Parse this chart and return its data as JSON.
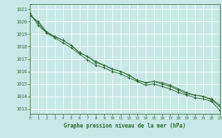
{
  "title": "Graphe pression niveau de la mer (hPa)",
  "bg_color": "#c8e8e8",
  "grid_color": "#b0d0d0",
  "line_color": "#2d6a2d",
  "x_min": 0,
  "x_max": 23,
  "y_min": 1012.6,
  "y_max": 1021.4,
  "y_ticks": [
    1013,
    1014,
    1015,
    1016,
    1017,
    1018,
    1019,
    1020,
    1021
  ],
  "x_ticks": [
    0,
    1,
    2,
    3,
    4,
    5,
    6,
    7,
    8,
    9,
    10,
    11,
    12,
    13,
    14,
    15,
    16,
    17,
    18,
    19,
    20,
    21,
    22,
    23
  ],
  "series": [
    [
      1020.5,
      1019.9,
      1019.1,
      1018.7,
      1018.3,
      1017.9,
      1017.4,
      1016.9,
      1016.5,
      1016.3,
      1016.0,
      1015.8,
      1015.5,
      1015.2,
      1014.9,
      1015.0,
      1014.8,
      1014.6,
      1014.3,
      1014.1,
      1013.9,
      1013.8,
      1013.6,
      1012.9
    ],
    [
      1020.5,
      1020.0,
      1019.2,
      1018.8,
      1018.5,
      1018.1,
      1017.5,
      1017.2,
      1016.7,
      1016.5,
      1016.2,
      1016.0,
      1015.7,
      1015.3,
      1015.1,
      1015.2,
      1015.0,
      1014.8,
      1014.5,
      1014.2,
      1014.1,
      1014.0,
      1013.7,
      1013.2
    ],
    [
      1020.7,
      1019.7,
      1019.1,
      1018.8,
      1018.5,
      1018.1,
      1017.5,
      1017.2,
      1016.8,
      1016.5,
      1016.2,
      1016.0,
      1015.7,
      1015.3,
      1015.1,
      1015.2,
      1015.1,
      1014.9,
      1014.6,
      1014.3,
      1014.1,
      1014.0,
      1013.8,
      1013.3
    ]
  ]
}
